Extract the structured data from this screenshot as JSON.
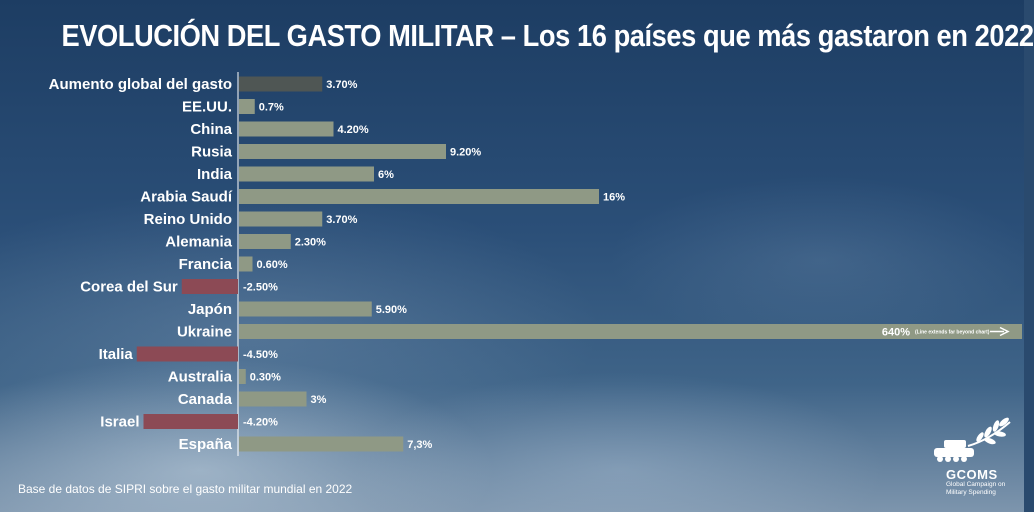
{
  "title": "EVOLUCIÓN DEL GASTO MILITAR – Los 16 países que más gastaron en 2022",
  "source": "Base de datos de SIPRI sobre el gasto militar mundial en 2022",
  "logo": {
    "name": "GCOMS",
    "subtitle_line1": "Global Campaign on",
    "subtitle_line2": "Military Spending"
  },
  "colors": {
    "positive": "#8f9985",
    "negative": "#8c4a55",
    "global": "#4f5654",
    "axis": "#ffffff",
    "text": "#ffffff"
  },
  "chart_data": {
    "type": "bar",
    "orientation": "horizontal",
    "unit": "%",
    "categories": [
      "Aumento global del gasto",
      "EE.UU.",
      "China",
      "Rusia",
      "India",
      "Arabia Saudí",
      "Reino Unido",
      "Alemania",
      "Francia",
      "Corea del Sur",
      "Japón",
      "Ukraine",
      "Italia",
      "Australia",
      "Canada",
      "Israel",
      "España"
    ],
    "values": [
      3.7,
      0.7,
      4.2,
      9.2,
      6,
      16,
      3.7,
      2.3,
      0.6,
      -2.5,
      5.9,
      640,
      -4.5,
      0.3,
      3,
      -4.2,
      7.3
    ],
    "value_labels": [
      "3.70%",
      "0.7%",
      "4.20%",
      "9.20%",
      "6%",
      "16%",
      "3.70%",
      "2.30%",
      "0.60%",
      "-2.50%",
      "5.90%",
      "640%",
      "-4.50%",
      "0.30%",
      "3%",
      "-4.20%",
      "7,3%"
    ],
    "kinds": [
      "global",
      "positive",
      "positive",
      "positive",
      "positive",
      "positive",
      "positive",
      "positive",
      "positive",
      "negative",
      "positive",
      "positive",
      "negative",
      "positive",
      "positive",
      "negative",
      "positive"
    ],
    "truncated_index": 11,
    "truncated_note": "(Line extends far beyond chart)",
    "xlim": [
      -5,
      16
    ]
  }
}
